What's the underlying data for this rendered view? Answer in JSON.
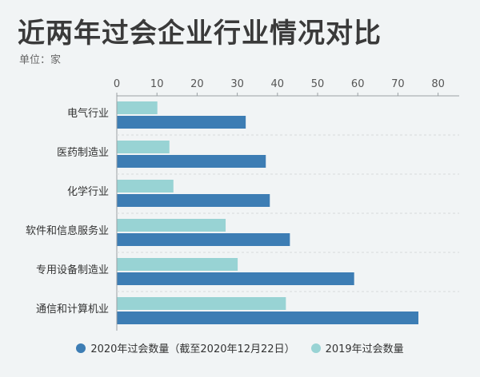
{
  "header": {
    "title": "近两年过会企业行业情况对比",
    "unit_label": "单位：家"
  },
  "colors": {
    "series_2020": "#3d7db4",
    "series_2019": "#98d3d4"
  },
  "chart_data": {
    "type": "bar",
    "orientation": "horizontal",
    "title": "近两年过会企业行业情况对比",
    "subtitle": "单位：家",
    "categories": [
      "电气行业",
      "医药制造业",
      "化学行业",
      "软件和信息服务业",
      "专用设备制造业",
      "通信和计算机业"
    ],
    "series": [
      {
        "name": "2019年过会数量",
        "values": [
          10,
          13,
          14,
          27,
          30,
          42
        ]
      },
      {
        "name": "2020年过会数量（截至2020年12月22日）",
        "values": [
          32,
          37,
          38,
          43,
          59,
          75
        ]
      }
    ],
    "xlim": [
      0,
      85
    ],
    "xticks": [
      "0",
      "10",
      "20",
      "30",
      "40",
      "50",
      "60",
      "70",
      "80"
    ],
    "axis_position": "top",
    "grid": false,
    "legend_position": "bottom"
  },
  "legend": [
    {
      "label": "2020年过会数量（截至2020年12月22日）",
      "color": "#3d7db4"
    },
    {
      "label": "2019年过会数量",
      "color": "#98d3d4"
    }
  ]
}
